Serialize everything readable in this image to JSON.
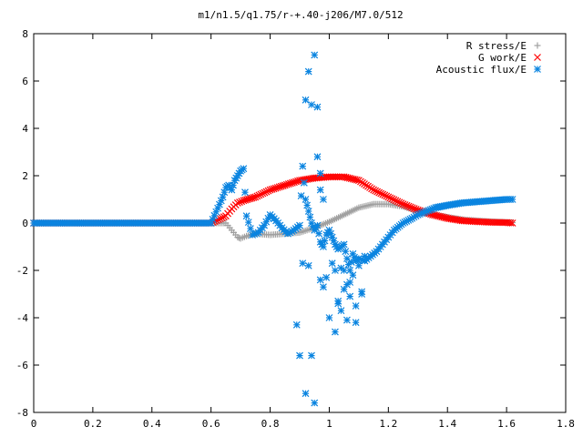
{
  "chart_data": {
    "type": "scatter",
    "title": "m1/n1.5/q1.75/r-+.40-j206/M7.0/512",
    "xlabel": "",
    "ylabel": "",
    "xlim": [
      0,
      1.8
    ],
    "ylim": [
      -8,
      8
    ],
    "x_ticks": [
      "0",
      "0.2",
      "0.4",
      "0.6",
      "0.8",
      "1",
      "1.2",
      "1.4",
      "1.6",
      "1.8"
    ],
    "y_ticks": [
      "-8",
      "-6",
      "-4",
      "-2",
      "0",
      "2",
      "4",
      "6",
      "8"
    ],
    "grid": false,
    "legend_position": "top-right",
    "series": [
      {
        "name": "R stress/E",
        "marker": "plus",
        "color": "#a0a0a0",
        "x": [
          0.0,
          0.1,
          0.2,
          0.3,
          0.4,
          0.5,
          0.6,
          0.65,
          0.67,
          0.69,
          0.7,
          0.72,
          0.75,
          0.8,
          0.85,
          0.9,
          0.95,
          1.0,
          1.05,
          1.1,
          1.15,
          1.2,
          1.25,
          1.3,
          1.35,
          1.4,
          1.45,
          1.5,
          1.55,
          1.6,
          1.62
        ],
        "y": [
          0,
          0,
          0,
          0,
          0,
          0,
          0,
          0,
          -0.3,
          -0.6,
          -0.65,
          -0.55,
          -0.45,
          -0.5,
          -0.45,
          -0.4,
          -0.2,
          0.05,
          0.35,
          0.65,
          0.8,
          0.8,
          0.7,
          0.5,
          0.35,
          0.25,
          0.15,
          0.1,
          0.06,
          0.03,
          0.02
        ]
      },
      {
        "name": "G work/E",
        "marker": "cross",
        "color": "#ff0000",
        "x": [
          0.0,
          0.1,
          0.2,
          0.3,
          0.4,
          0.5,
          0.6,
          0.65,
          0.67,
          0.69,
          0.71,
          0.75,
          0.8,
          0.85,
          0.9,
          0.95,
          1.0,
          1.05,
          1.1,
          1.15,
          1.2,
          1.25,
          1.3,
          1.35,
          1.4,
          1.45,
          1.5,
          1.55,
          1.6,
          1.62
        ],
        "y": [
          0,
          0,
          0,
          0,
          0,
          0,
          0,
          0.3,
          0.6,
          0.85,
          0.95,
          1.1,
          1.4,
          1.6,
          1.8,
          1.9,
          1.95,
          1.95,
          1.8,
          1.4,
          1.1,
          0.8,
          0.55,
          0.35,
          0.2,
          0.1,
          0.06,
          0.03,
          0.02,
          0.0
        ]
      },
      {
        "name": "Acoustic flux/E",
        "marker": "star",
        "color": "#0a84e0",
        "x": [
          0.0,
          0.1,
          0.2,
          0.3,
          0.4,
          0.5,
          0.6,
          0.64,
          0.65,
          0.66,
          0.67,
          0.68,
          0.69,
          0.7,
          0.71,
          0.72,
          0.74,
          0.76,
          0.78,
          0.8,
          0.82,
          0.84,
          0.86,
          0.88,
          0.9,
          0.91,
          0.92,
          0.93,
          0.94,
          0.95,
          0.96,
          0.97,
          0.98,
          0.99,
          1.0,
          1.01,
          1.02,
          1.03,
          1.04,
          1.05,
          1.06,
          1.07,
          1.08,
          1.09,
          1.1,
          1.12,
          1.14,
          1.16,
          1.18,
          1.2,
          1.22,
          1.25,
          1.28,
          1.3,
          1.33,
          1.36,
          1.4,
          1.45,
          1.5,
          1.55,
          1.6,
          1.62,
          0.93,
          0.94,
          0.95,
          0.96,
          0.97,
          0.92,
          0.96,
          0.97,
          0.98,
          0.91,
          0.93,
          0.99,
          1.02,
          1.04,
          1.06,
          1.08,
          1.1,
          1.12,
          1.03,
          1.05,
          1.07,
          1.09,
          1.11,
          0.94,
          0.97,
          1.0,
          1.02,
          1.04,
          1.06,
          0.89,
          0.9,
          0.92,
          0.95,
          0.98,
          1.01,
          1.03,
          1.05,
          1.07,
          1.09,
          1.11
        ],
        "y": [
          0,
          0,
          0,
          0,
          0,
          0,
          0,
          1.1,
          1.5,
          1.6,
          1.4,
          1.8,
          2.0,
          2.2,
          2.3,
          0.3,
          -0.5,
          -0.4,
          -0.1,
          0.35,
          0.1,
          -0.2,
          -0.45,
          -0.3,
          -0.1,
          2.4,
          1.0,
          0.5,
          0.0,
          -0.3,
          -0.1,
          -0.8,
          -1.0,
          -0.5,
          -0.3,
          -0.6,
          -0.9,
          -1.1,
          -1.0,
          -0.9,
          -1.5,
          -2.0,
          -1.3,
          -1.6,
          -1.5,
          -1.6,
          -1.4,
          -1.2,
          -0.9,
          -0.6,
          -0.3,
          0.0,
          0.2,
          0.35,
          0.5,
          0.65,
          0.75,
          0.85,
          0.9,
          0.95,
          1.0,
          1.0,
          6.4,
          5.0,
          7.1,
          2.8,
          1.4,
          5.2,
          4.9,
          2.1,
          1.0,
          -1.7,
          -1.8,
          -2.3,
          -2.0,
          -1.9,
          -2.6,
          -2.2,
          -1.8,
          -1.4,
          -3.4,
          -2.8,
          -3.1,
          -3.5,
          -2.9,
          -5.6,
          -2.4,
          -4.0,
          -4.6,
          -3.7,
          -4.1,
          -4.3,
          -5.6,
          -7.2,
          -7.6,
          -2.7,
          -1.7,
          -3.3,
          -2.0,
          -2.5,
          -4.2,
          -3.0
        ]
      }
    ]
  }
}
